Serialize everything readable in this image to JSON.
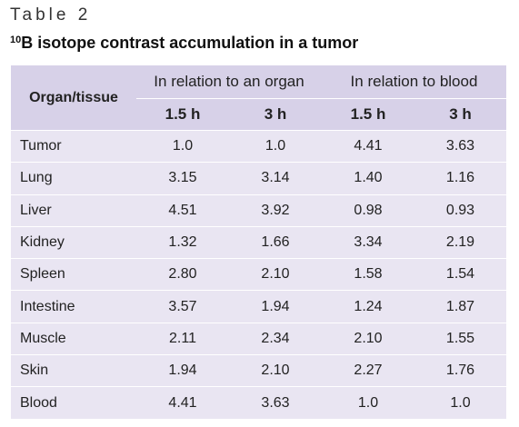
{
  "table_label": "Table 2",
  "title": {
    "superscript": "10",
    "text": "B isotope contrast accumulation in a tumor"
  },
  "header": {
    "organ": "Organ/tissue",
    "group_organ": "In relation to an organ",
    "group_blood": "In relation to blood",
    "time_1": "1.5 h",
    "time_2": "3 h",
    "time_3": "1.5 h",
    "time_4": "3 h"
  },
  "rows": [
    {
      "organ": "Tumor",
      "v1": "1.0",
      "v2": "1.0",
      "v3": "4.41",
      "v4": "3.63"
    },
    {
      "organ": "Lung",
      "v1": "3.15",
      "v2": "3.14",
      "v3": "1.40",
      "v4": "1.16"
    },
    {
      "organ": "Liver",
      "v1": "4.51",
      "v2": "3.92",
      "v3": "0.98",
      "v4": "0.93"
    },
    {
      "organ": "Kidney",
      "v1": "1.32",
      "v2": "1.66",
      "v3": "3.34",
      "v4": "2.19"
    },
    {
      "organ": "Spleen",
      "v1": "2.80",
      "v2": "2.10",
      "v3": "1.58",
      "v4": "1.54"
    },
    {
      "organ": "Intestine",
      "v1": "3.57",
      "v2": "1.94",
      "v3": "1.24",
      "v4": "1.87"
    },
    {
      "organ": "Muscle",
      "v1": "2.11",
      "v2": "2.34",
      "v3": "2.10",
      "v4": "1.55"
    },
    {
      "organ": "Skin",
      "v1": "1.94",
      "v2": "2.10",
      "v3": "2.27",
      "v4": "1.76"
    },
    {
      "organ": "Blood",
      "v1": "4.41",
      "v2": "3.63",
      "v3": "1.0",
      "v4": "1.0"
    }
  ]
}
